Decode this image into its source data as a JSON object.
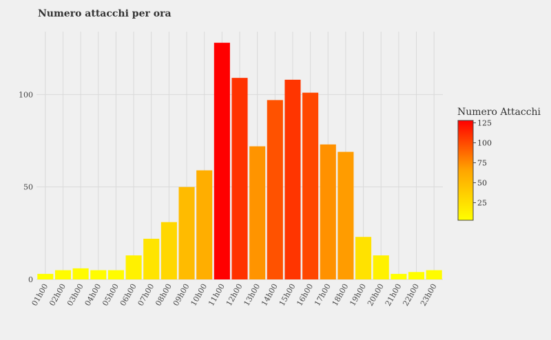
{
  "chart_data": {
    "type": "bar",
    "title": "Numero attacchi per ora",
    "xlabel": "",
    "ylabel": "",
    "categories": [
      "01h00",
      "02h00",
      "03h00",
      "04h00",
      "05h00",
      "06h00",
      "07h00",
      "08h00",
      "09h00",
      "10h00",
      "11h00",
      "12h00",
      "13h00",
      "14h00",
      "15h00",
      "16h00",
      "17h00",
      "18h00",
      "19h00",
      "20h00",
      "21h00",
      "22h00",
      "23h00"
    ],
    "values": [
      3,
      5,
      6,
      5,
      5,
      13,
      22,
      31,
      50,
      59,
      128,
      109,
      72,
      97,
      108,
      101,
      73,
      69,
      23,
      13,
      3,
      4,
      5
    ],
    "ylim": [
      0,
      134
    ],
    "yticks": [
      0,
      50,
      100
    ],
    "grid": true,
    "colorscale": {
      "title": "Numero Attacchi",
      "min": 3,
      "max": 128,
      "ticks": [
        25,
        50,
        75,
        100,
        125
      ],
      "colors": [
        "#ffff00",
        "#ffa500",
        "#ff0000"
      ]
    }
  }
}
